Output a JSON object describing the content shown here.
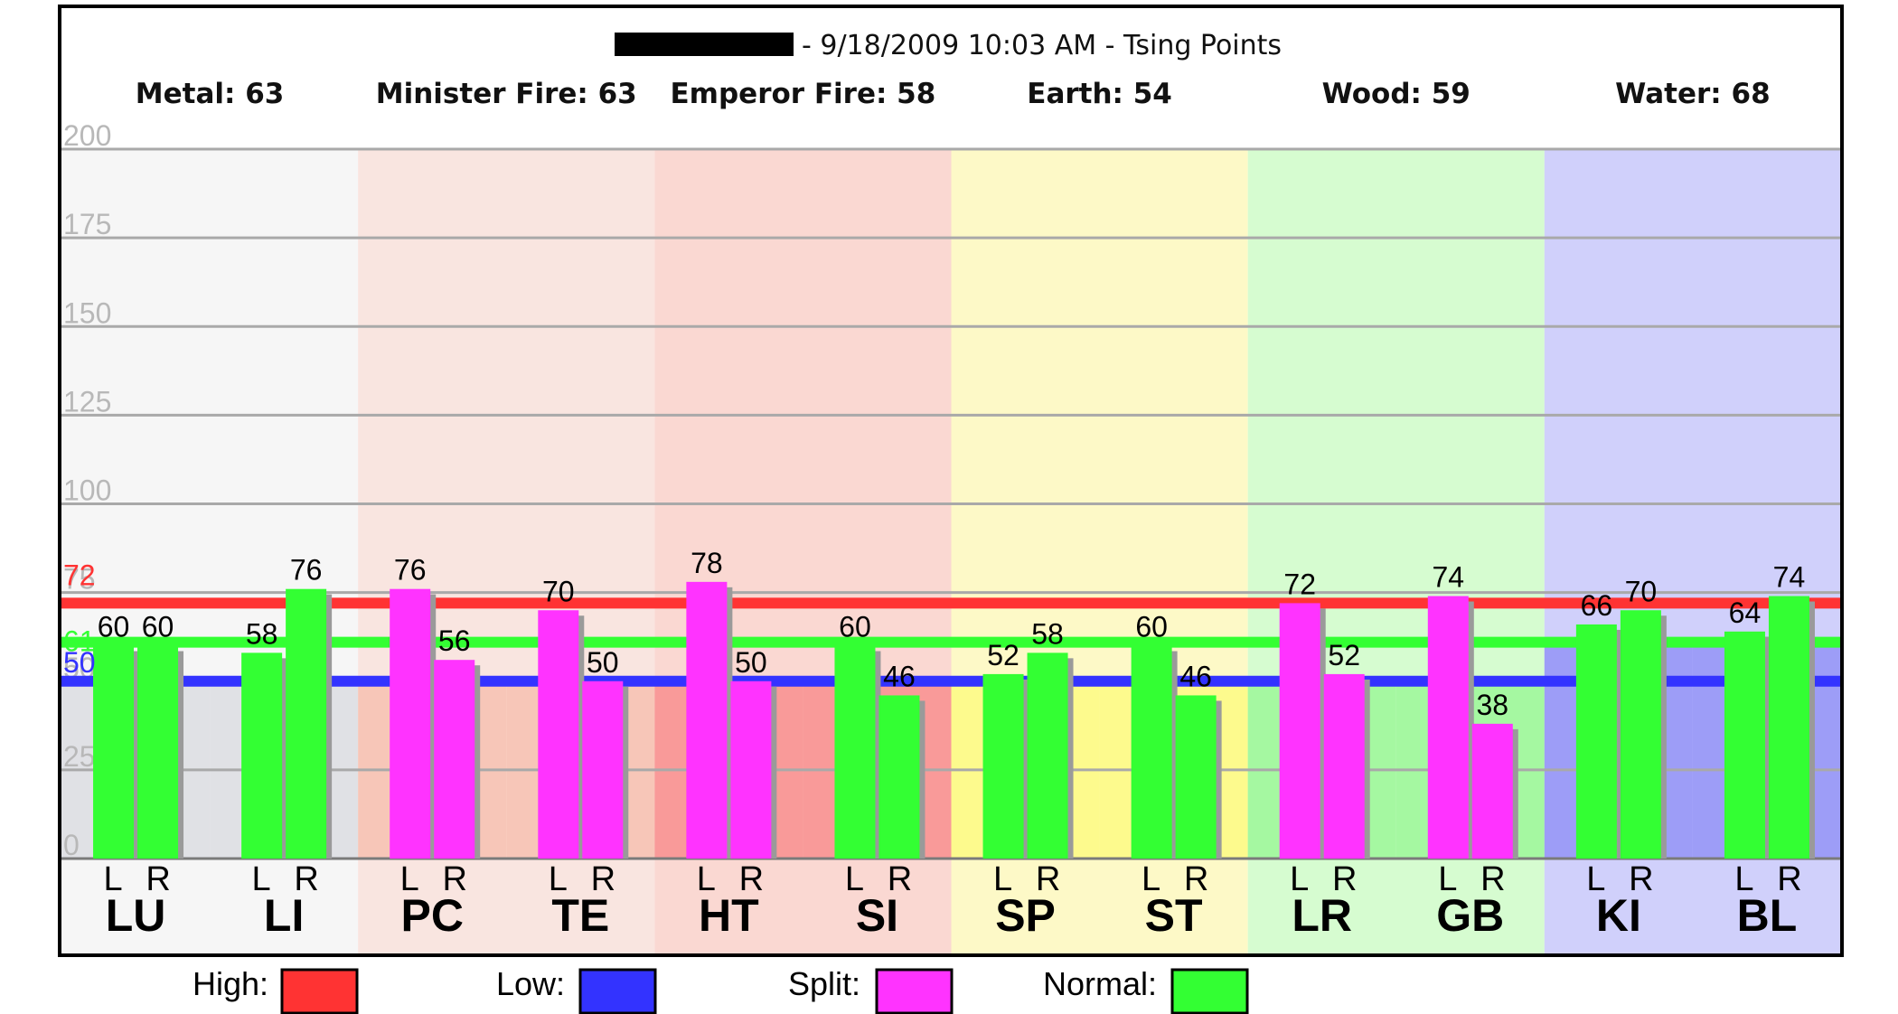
{
  "header": {
    "subtitle": "- 9/18/2009 10:03 AM - Tsing Points"
  },
  "elements": [
    {
      "label": "Metal: 63",
      "color": "#f6f6f6",
      "low_color": "#e0e1e5",
      "points": [
        "LU",
        "LI"
      ]
    },
    {
      "label": "Minister Fire: 63",
      "color": "#f9e5e0",
      "low_color": "#f7c6b8",
      "points": [
        "PC",
        "TE"
      ]
    },
    {
      "label": "Emperor Fire: 58",
      "color": "#fad8d2",
      "low_color": "#f99a99",
      "points": [
        "HT",
        "SI"
      ]
    },
    {
      "label": "Earth: 54",
      "color": "#fdf9c7",
      "low_color": "#fdfa8d",
      "points": [
        "SP",
        "ST"
      ]
    },
    {
      "label": "Wood: 59",
      "color": "#d6fcd0",
      "low_color": "#a5f8a1",
      "points": [
        "LR",
        "GB"
      ]
    },
    {
      "label": "Water: 68",
      "color": "#d0d0fb",
      "low_color": "#9d9df7",
      "points": [
        "KI",
        "BL"
      ]
    }
  ],
  "chart_data": {
    "type": "bar",
    "ylim": [
      0,
      200
    ],
    "y_ticks": [
      "0",
      "25",
      "50",
      "75",
      "100",
      "125",
      "150",
      "175",
      "200"
    ],
    "lr_labels": [
      "L",
      "R"
    ],
    "categories": [
      "LU",
      "LI",
      "PC",
      "TE",
      "HT",
      "SI",
      "SP",
      "ST",
      "LR",
      "GB",
      "KI",
      "BL"
    ],
    "bars": [
      {
        "point": "LU",
        "L": 60,
        "R": 60,
        "status": "normal"
      },
      {
        "point": "LI",
        "L": 58,
        "R": 76,
        "status": "normal"
      },
      {
        "point": "PC",
        "L": 76,
        "R": 56,
        "status": "split"
      },
      {
        "point": "TE",
        "L": 70,
        "R": 50,
        "status": "split"
      },
      {
        "point": "HT",
        "L": 78,
        "R": 50,
        "status": "split"
      },
      {
        "point": "SI",
        "L": 60,
        "R": 46,
        "status": "normal"
      },
      {
        "point": "SP",
        "L": 52,
        "R": 58,
        "status": "normal"
      },
      {
        "point": "ST",
        "L": 60,
        "R": 46,
        "status": "normal"
      },
      {
        "point": "LR",
        "L": 72,
        "R": 52,
        "status": "split"
      },
      {
        "point": "GB",
        "L": 74,
        "R": 38,
        "status": "split"
      },
      {
        "point": "KI",
        "L": 66,
        "R": 70,
        "status": "normal"
      },
      {
        "point": "BL",
        "L": 64,
        "R": 74,
        "status": "normal"
      }
    ],
    "reference_lines": [
      {
        "name": "high",
        "value": 72,
        "label": "72",
        "color": "#ff3333"
      },
      {
        "name": "normal",
        "value": 61,
        "label": "61",
        "color": "#33ff33"
      },
      {
        "name": "low",
        "value": 50,
        "label": "50",
        "color": "#3333ff"
      }
    ],
    "colors": {
      "split": "#ff33ff",
      "normal": "#33ff33"
    }
  },
  "legend": [
    {
      "label": "High:",
      "color": "#ff3333"
    },
    {
      "label": "Low:",
      "color": "#3333ff"
    },
    {
      "label": "Split:",
      "color": "#ff33ff"
    },
    {
      "label": "Normal:",
      "color": "#33ff33"
    }
  ]
}
